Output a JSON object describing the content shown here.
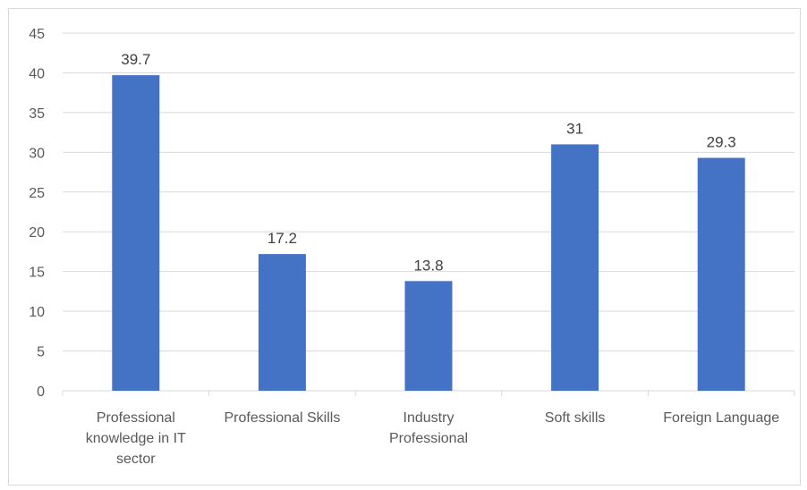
{
  "chart_data": {
    "type": "bar",
    "categories": [
      "Professional knowledge in IT sector",
      "Professional Skills",
      "Industry Professional",
      "Soft skills",
      "Foreign Language"
    ],
    "category_lines": [
      [
        "Professional",
        "knowledge in IT",
        "sector"
      ],
      [
        "Professional Skills"
      ],
      [
        "Industry",
        "Professional"
      ],
      [
        "Soft skills"
      ],
      [
        "Foreign Language"
      ]
    ],
    "values": [
      39.7,
      17.2,
      13.8,
      31,
      29.3
    ],
    "data_labels": [
      "39.7",
      "17.2",
      "13.8",
      "31",
      "29.3"
    ],
    "title": "",
    "xlabel": "",
    "ylabel": "",
    "ylim": [
      0,
      45
    ],
    "yticks": [
      "0",
      "5",
      "10",
      "15",
      "20",
      "25",
      "30",
      "35",
      "40",
      "45"
    ],
    "grid": true,
    "legend": "none",
    "bar_color": "#4472c4",
    "grid_color": "#d9d9d9"
  }
}
